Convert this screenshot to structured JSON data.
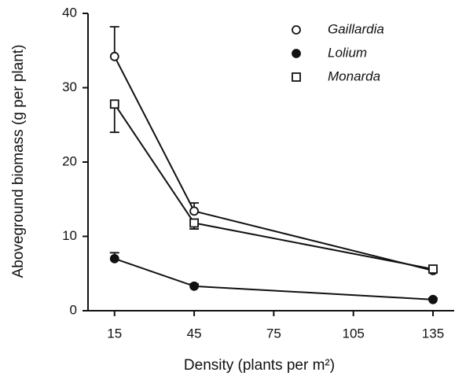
{
  "chart_data": {
    "type": "line",
    "xlabel": "Density (plants per m²)",
    "ylabel": "Aboveground biomass (g per plant)",
    "x": [
      15,
      45,
      135
    ],
    "series": [
      {
        "name": "Gaillardia",
        "color": "#111111",
        "marker": "circle-open",
        "error_side": "up",
        "values": [
          34.2,
          13.4,
          5.4
        ],
        "errors": [
          4.0,
          1.1,
          0.3
        ]
      },
      {
        "name": "Lolium",
        "color": "#111111",
        "marker": "circle-filled",
        "error_side": "up",
        "values": [
          7.0,
          3.3,
          1.5
        ],
        "errors": [
          0.8,
          0.3,
          0.2
        ]
      },
      {
        "name": "Monarda",
        "color": "#111111",
        "marker": "square-open",
        "error_side": "down",
        "values": [
          27.8,
          11.8,
          5.6
        ],
        "errors": [
          3.8,
          0.8,
          0.3
        ]
      }
    ],
    "xlim": [
      5,
      143
    ],
    "xticks": [
      15,
      45,
      75,
      105,
      135
    ],
    "ylim": [
      0,
      40
    ],
    "yticks": [
      0,
      10,
      20,
      30,
      40
    ],
    "legend": "top-right"
  }
}
